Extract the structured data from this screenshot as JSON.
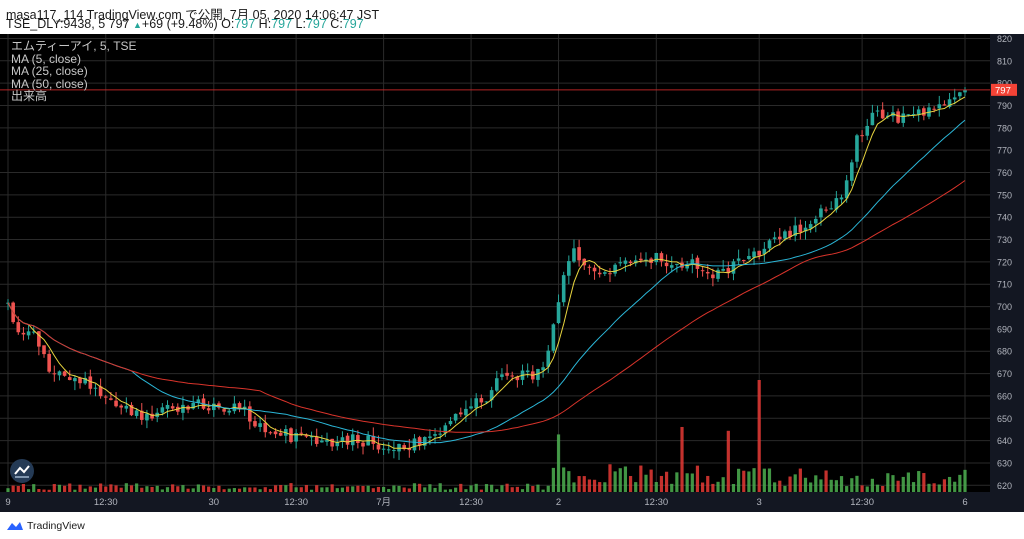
{
  "header": {
    "line1": "masa117_114 TradingView.com で公開, 7月 05, 2020 14:06:47 JST",
    "symbol": "TSE_DLY:9438, 5",
    "last": "797",
    "change_arrow": "▲",
    "change": "+69 (+9.48%)",
    "o_label": "O:",
    "o": "797",
    "h_label": "H:",
    "h": "797",
    "l_label": "L:",
    "l": "797",
    "c_label": "C:",
    "c": "797"
  },
  "legend": {
    "title": "エムティーアイ, 5, TSE",
    "ma5": "MA (5, close)",
    "ma25": "MA (25, close)",
    "ma50": "MA (50, close)",
    "volume": "出来高"
  },
  "footer": {
    "brand": "TradingView"
  },
  "colors": {
    "background": "#000000",
    "grid": "#2a2a2a",
    "up": "#26a69a",
    "down": "#ef5350",
    "volume_up": "#4caf50",
    "volume_down": "#e53935",
    "ma5": "#e8d53f",
    "ma25": "#2bb7d8",
    "ma50": "#d9342b",
    "last_price_line": "#c62828",
    "price_label_bg": "#f44336",
    "axis_text": "#b2b5be"
  },
  "chart_data": {
    "type": "candlestick",
    "price_axis": {
      "ticks": [
        620,
        630,
        640,
        650,
        660,
        670,
        680,
        690,
        700,
        710,
        720,
        730,
        740,
        750,
        760,
        770,
        780,
        790,
        800,
        810,
        820
      ],
      "ylim": [
        617,
        822
      ],
      "position": "right"
    },
    "time_axis": {
      "labels": [
        "9",
        "12:30",
        "30",
        "12:30",
        "7月",
        "12:30",
        "2",
        "12:30",
        "3",
        "12:30",
        "6"
      ],
      "label_bars": [
        0,
        19,
        40,
        56,
        73,
        90,
        107,
        126,
        146,
        166,
        186
      ]
    },
    "last_price": 797,
    "bar_count": 187,
    "series": [
      {
        "name": "MA (5, close)",
        "period": 5
      },
      {
        "name": "MA (25, close)",
        "period": 25
      },
      {
        "name": "MA (50, close)",
        "period": 50
      }
    ],
    "price_path": [
      [
        0,
        702
      ],
      [
        2,
        690
      ],
      [
        5,
        686
      ],
      [
        8,
        672
      ],
      [
        12,
        666
      ],
      [
        16,
        665
      ],
      [
        20,
        660
      ],
      [
        24,
        651
      ],
      [
        28,
        652
      ],
      [
        32,
        654
      ],
      [
        36,
        655
      ],
      [
        40,
        657
      ],
      [
        45,
        654
      ],
      [
        50,
        645
      ],
      [
        55,
        642
      ],
      [
        60,
        640
      ],
      [
        65,
        640
      ],
      [
        70,
        640
      ],
      [
        75,
        636
      ],
      [
        80,
        639
      ],
      [
        84,
        643
      ],
      [
        88,
        653
      ],
      [
        92,
        657
      ],
      [
        96,
        670
      ],
      [
        100,
        669
      ],
      [
        104,
        670
      ],
      [
        106,
        690
      ],
      [
        108,
        713
      ],
      [
        110,
        724
      ],
      [
        114,
        715
      ],
      [
        118,
        718
      ],
      [
        122,
        721
      ],
      [
        126,
        723
      ],
      [
        130,
        717
      ],
      [
        134,
        719
      ],
      [
        138,
        714
      ],
      [
        142,
        719
      ],
      [
        146,
        725
      ],
      [
        150,
        729
      ],
      [
        154,
        736
      ],
      [
        158,
        743
      ],
      [
        162,
        750
      ],
      [
        165,
        774
      ],
      [
        168,
        785
      ],
      [
        172,
        784
      ],
      [
        176,
        786
      ],
      [
        180,
        789
      ],
      [
        184,
        795
      ],
      [
        186,
        797
      ]
    ],
    "volume_spikes": {
      "131": 2.0,
      "146": 4.3,
      "140": 1.5,
      "107": 1.6
    }
  }
}
